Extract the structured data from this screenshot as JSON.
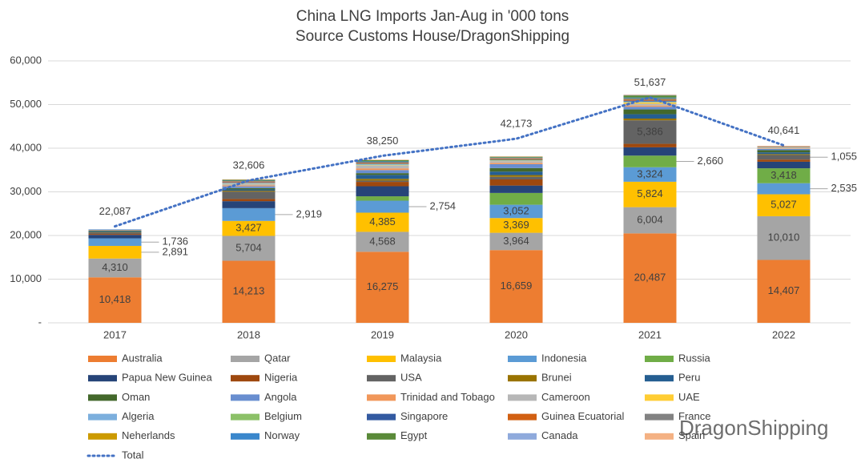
{
  "chart_data": {
    "type": "stacked_bar",
    "title": "China LNG Imports Jan-Aug in '000 tons",
    "subtitle": "Source Customs House/DragonShipping",
    "watermark": "DragonShipping",
    "categories": [
      "2017",
      "2018",
      "2019",
      "2020",
      "2021",
      "2022"
    ],
    "ylim": [
      0,
      60000
    ],
    "yticks": [
      {
        "value": 0,
        "label": "-"
      },
      {
        "value": 10000,
        "label": "10,000"
      },
      {
        "value": 20000,
        "label": "20,000"
      },
      {
        "value": 30000,
        "label": "30,000"
      },
      {
        "value": 40000,
        "label": "40,000"
      },
      {
        "value": 50000,
        "label": "50,000"
      },
      {
        "value": 60000,
        "label": "60,000"
      }
    ],
    "grid": true,
    "series": [
      {
        "name": "Australia",
        "color": "#ed7d31",
        "values": [
          10418,
          14213,
          16275,
          16659,
          20487,
          14407
        ],
        "value_labels": [
          "10,418",
          "14,213",
          "16,275",
          "16,659",
          "20,487",
          "14,407"
        ]
      },
      {
        "name": "Qatar",
        "color": "#a5a5a5",
        "values": [
          4310,
          5704,
          4568,
          3964,
          6004,
          10010
        ],
        "value_labels": [
          "4,310",
          "5,704",
          "4,568",
          "3,964",
          "6,004",
          "10,010"
        ]
      },
      {
        "name": "Malaysia",
        "color": "#ffc000",
        "values": [
          2891,
          3427,
          4385,
          3369,
          5824,
          5027
        ],
        "value_labels": [
          "2,891",
          "3,427",
          "4,385",
          "3,369",
          "5,824",
          "5,027"
        ]
      },
      {
        "name": "Indonesia",
        "color": "#5b9bd5",
        "values": [
          1736,
          2919,
          2754,
          3052,
          3324,
          2535
        ],
        "value_labels": [
          "1,736",
          "2,919",
          "2,754",
          "3,052",
          "3,324",
          "2,535"
        ]
      },
      {
        "name": "Russia",
        "color": "#70ad47",
        "values": [
          0,
          0,
          1000,
          2700,
          2660,
          3418
        ],
        "value_labels": [
          null,
          null,
          null,
          null,
          "2,660",
          "3,418"
        ]
      },
      {
        "name": "Papua New Guinea",
        "color": "#264478",
        "values": [
          800,
          1600,
          2300,
          1700,
          1900,
          1500
        ]
      },
      {
        "name": "Nigeria",
        "color": "#9e480e",
        "values": [
          200,
          500,
          1000,
          1400,
          800,
          500
        ]
      },
      {
        "name": "USA",
        "color": "#636363",
        "values": [
          300,
          1700,
          300,
          600,
          5386,
          1055
        ],
        "value_labels": [
          null,
          null,
          null,
          null,
          "5,386",
          "1,055"
        ]
      },
      {
        "name": "Brunei",
        "color": "#997300",
        "values": [
          100,
          200,
          400,
          400,
          400,
          200
        ]
      },
      {
        "name": "Peru",
        "color": "#255e91",
        "values": [
          200,
          300,
          900,
          800,
          1000,
          400
        ]
      },
      {
        "name": "Oman",
        "color": "#43682b",
        "values": [
          150,
          300,
          400,
          800,
          1100,
          500
        ]
      },
      {
        "name": "Angola",
        "color": "#698ed0",
        "values": [
          100,
          400,
          700,
          900,
          600,
          300
        ]
      },
      {
        "name": "Trinidad and Tobago",
        "color": "#f1975a",
        "values": [
          100,
          200,
          400,
          300,
          300,
          100
        ]
      },
      {
        "name": "Cameroon",
        "color": "#b7b7b7",
        "values": [
          0,
          300,
          600,
          400,
          400,
          200
        ]
      },
      {
        "name": "UAE",
        "color": "#ffcd33",
        "values": [
          0,
          100,
          100,
          100,
          300,
          100
        ]
      },
      {
        "name": "Algeria",
        "color": "#7cafdd",
        "values": [
          150,
          200,
          200,
          100,
          100,
          0
        ]
      },
      {
        "name": "Belgium",
        "color": "#8cc168",
        "values": [
          0,
          0,
          100,
          100,
          100,
          0
        ]
      },
      {
        "name": "Singapore",
        "color": "#335aa1",
        "values": [
          0,
          100,
          100,
          100,
          200,
          100
        ]
      },
      {
        "name": "Guinea Ecuatorial",
        "color": "#d26012",
        "values": [
          0,
          200,
          200,
          200,
          200,
          100
        ]
      },
      {
        "name": "France",
        "color": "#828282",
        "values": [
          0,
          100,
          100,
          100,
          200,
          0
        ]
      },
      {
        "name": "Neherlands",
        "color": "#cc9a00",
        "values": [
          0,
          0,
          0,
          0,
          100,
          0
        ]
      },
      {
        "name": "Norway",
        "color": "#3a87cc",
        "values": [
          0,
          100,
          200,
          100,
          200,
          0
        ]
      },
      {
        "name": "Egypt",
        "color": "#5a8a39",
        "values": [
          0,
          200,
          300,
          200,
          500,
          0
        ]
      },
      {
        "name": "Canada",
        "color": "#8faadc",
        "values": [
          0,
          0,
          0,
          0,
          100,
          0
        ]
      },
      {
        "name": "Spain",
        "color": "#f4b183",
        "values": [
          0,
          100,
          100,
          100,
          100,
          0
        ]
      }
    ],
    "total": {
      "name": "Total",
      "color": "#4472c4",
      "values": [
        22087,
        32606,
        38250,
        42173,
        51637,
        40641
      ],
      "value_labels": [
        "22,087",
        "32,606",
        "38,250",
        "42,173",
        "51,637",
        "40,641"
      ]
    }
  }
}
